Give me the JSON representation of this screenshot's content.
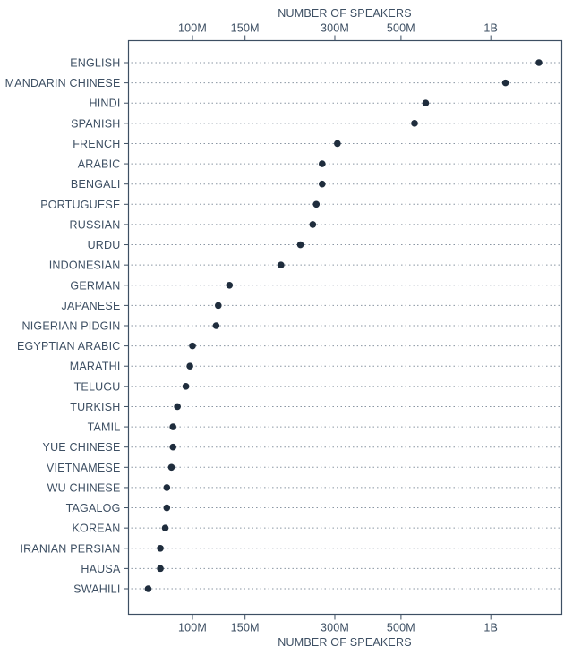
{
  "chart_data": {
    "type": "scatter",
    "xlabel": "NUMBER OF SPEAKERS",
    "xscale": "log",
    "xlim": [
      61000000,
      1730000000
    ],
    "xticks": [
      {
        "value": 100000000,
        "label": "100M"
      },
      {
        "value": 150000000,
        "label": "150M"
      },
      {
        "value": 300000000,
        "label": "300M"
      },
      {
        "value": 500000000,
        "label": "500M"
      },
      {
        "value": 1000000000,
        "label": "1B"
      }
    ],
    "axis_positions": [
      "top",
      "bottom"
    ],
    "grid": "dotted horizontal per row",
    "colors": {
      "dot": "#1f2d3d",
      "text": "#3d4f63",
      "grid": "#8a96a3"
    },
    "categories": [
      "ENGLISH",
      "MANDARIN CHINESE",
      "HINDI",
      "SPANISH",
      "FRENCH",
      "ARABIC",
      "BENGALI",
      "PORTUGUESE",
      "RUSSIAN",
      "URDU",
      "INDONESIAN",
      "GERMAN",
      "JAPANESE",
      "NIGERIAN PIDGIN",
      "EGYPTIAN ARABIC",
      "MARATHI",
      "TELUGU",
      "TURKISH",
      "TAMIL",
      "YUE CHINESE",
      "VIETNAMESE",
      "WU CHINESE",
      "TAGALOG",
      "KOREAN",
      "IRANIAN PERSIAN",
      "HAUSA",
      "SWAHILI"
    ],
    "values": [
      1450000000,
      1120000000,
      605000000,
      555000000,
      306000000,
      272000000,
      272000000,
      260000000,
      253000000,
      230000000,
      198000000,
      133000000,
      122000000,
      120000000,
      100000000,
      98000000,
      95000000,
      89000000,
      86000000,
      86000000,
      85000000,
      82000000,
      82000000,
      81000000,
      78000000,
      78000000,
      71000000
    ]
  }
}
